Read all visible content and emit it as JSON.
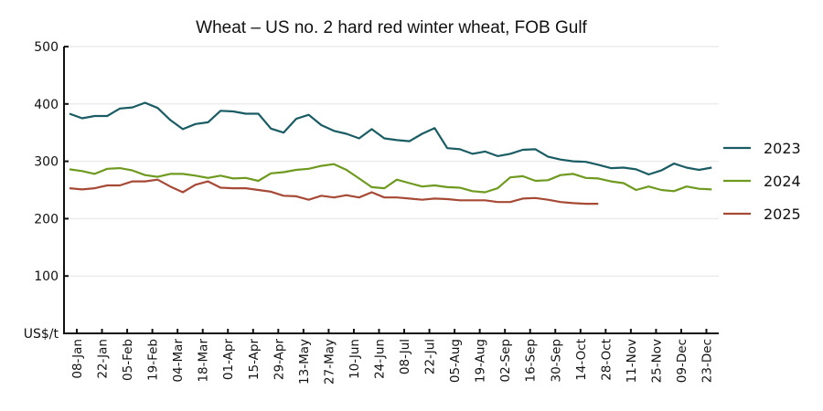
{
  "chart_data": {
    "type": "line",
    "title": "Wheat – US no. 2 hard red winter wheat, FOB Gulf",
    "ylabel": "US$/t",
    "xlabel": "",
    "ylim": [
      0,
      500
    ],
    "yticks": [
      "500",
      "400",
      "300",
      "200",
      "100"
    ],
    "grid": true,
    "legend_position": "right",
    "x_tick_labels": [
      "08-Jan",
      "22-Jan",
      "05-Feb",
      "19-Feb",
      "04-Mar",
      "18-Mar",
      "01-Apr",
      "15-Apr",
      "29-Apr",
      "13-May",
      "27-May",
      "10-Jun",
      "24-Jun",
      "08-Jul",
      "22-Jul",
      "05-Aug",
      "19-Aug",
      "02-Sep",
      "16-Sep",
      "30-Sep",
      "14-Oct",
      "28-Oct",
      "11-Nov",
      "25-Nov",
      "09-Dec",
      "23-Dec"
    ],
    "series": [
      {
        "name": "2023",
        "color": "#1a5c63",
        "values": [
          383,
          375,
          379,
          379,
          392,
          394,
          402,
          393,
          372,
          356,
          365,
          368,
          388,
          387,
          383,
          383,
          357,
          350,
          374,
          381,
          363,
          353,
          348,
          340,
          356,
          340,
          337,
          335,
          348,
          358,
          323,
          321,
          313,
          317,
          309,
          313,
          320,
          321,
          308,
          303,
          300,
          299,
          294,
          288,
          289,
          286,
          277,
          284,
          296,
          289,
          285,
          289
        ]
      },
      {
        "name": "2024",
        "color": "#6e9a1f",
        "values": [
          286,
          283,
          278,
          287,
          288,
          284,
          276,
          273,
          278,
          278,
          275,
          271,
          275,
          270,
          271,
          266,
          279,
          281,
          285,
          287,
          292,
          295,
          285,
          270,
          255,
          253,
          268,
          262,
          256,
          258,
          255,
          254,
          248,
          246,
          253,
          272,
          274,
          266,
          267,
          276,
          278,
          271,
          270,
          265,
          262,
          250,
          256,
          250,
          248,
          256,
          252,
          251
        ]
      },
      {
        "name": "2025",
        "color": "#a64a36",
        "values": [
          253,
          251,
          253,
          258,
          258,
          265,
          265,
          268,
          256,
          246,
          259,
          265,
          254,
          253,
          253,
          250,
          247,
          240,
          239,
          233,
          240,
          237,
          241,
          237,
          246,
          237,
          237,
          235,
          233,
          235,
          234,
          232,
          232,
          232,
          229,
          229,
          235,
          236,
          233,
          229,
          227,
          226,
          226
        ]
      }
    ]
  }
}
